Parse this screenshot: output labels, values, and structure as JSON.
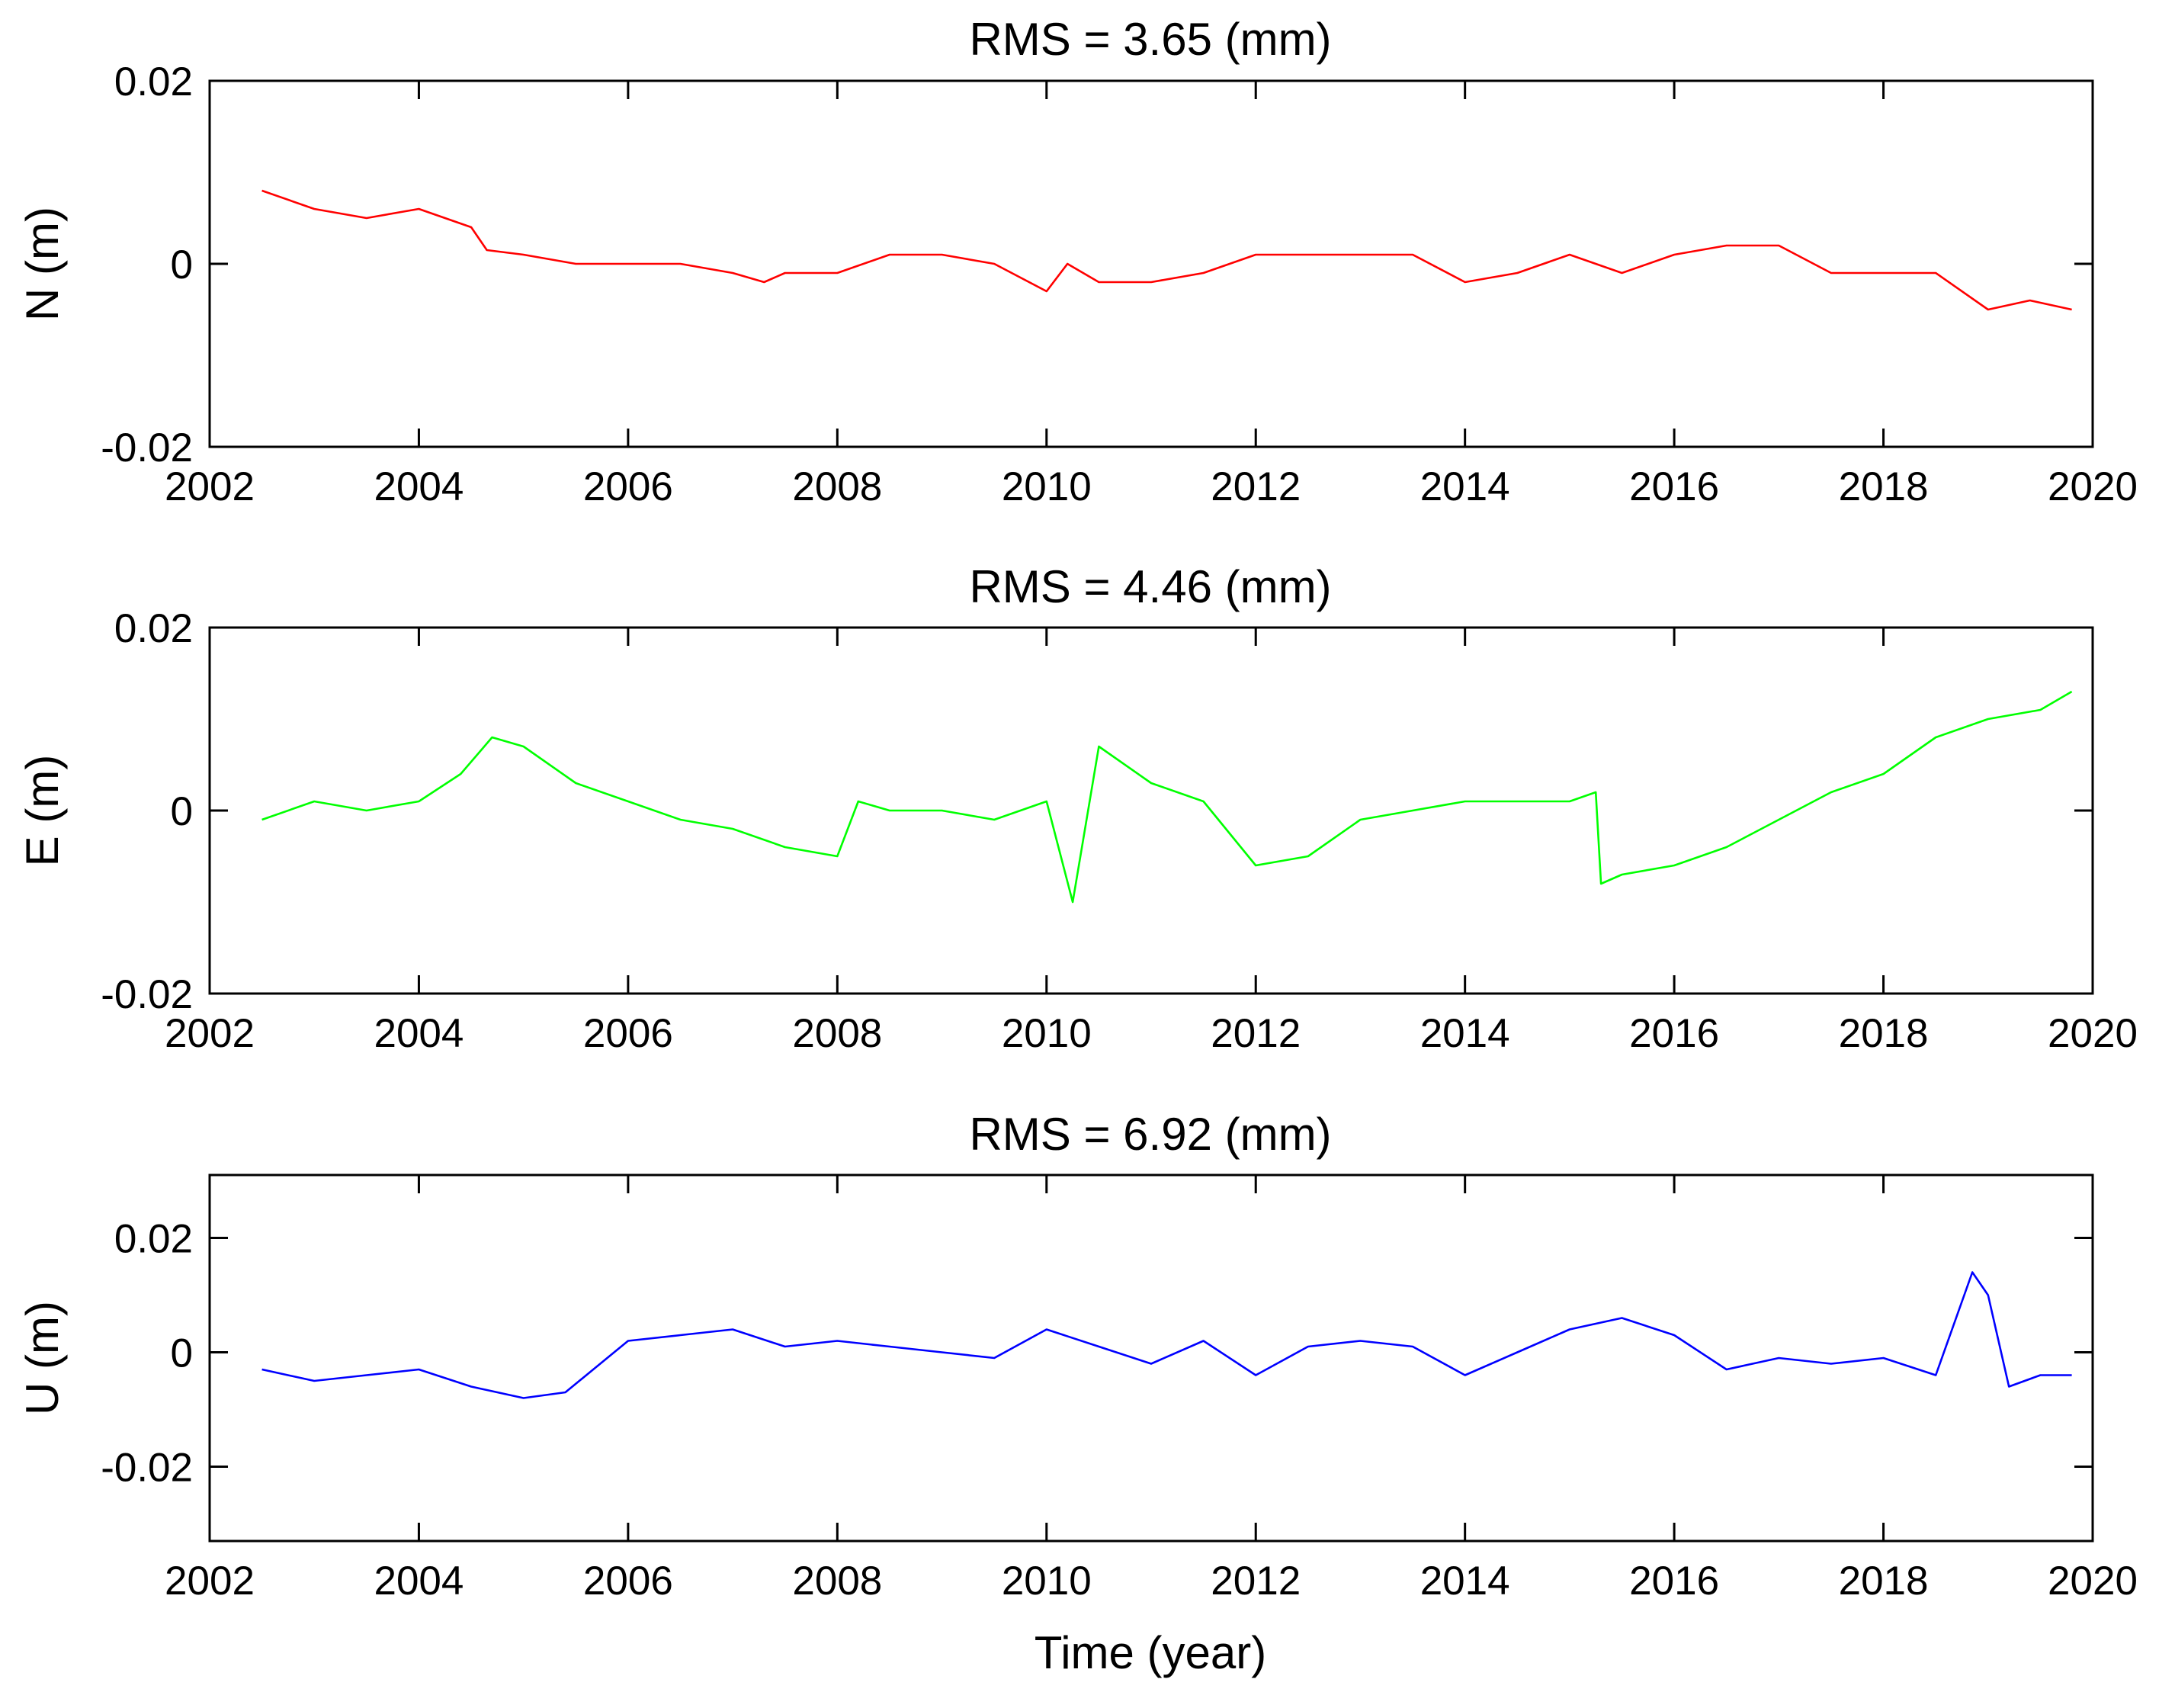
{
  "chart_data": [
    {
      "type": "line",
      "title": "RMS = 3.65 (mm)",
      "xlabel": "",
      "ylabel": "N (m)",
      "xlim": [
        2002,
        2020
      ],
      "ylim": [
        -0.02,
        0.02
      ],
      "xticks": [
        2002,
        2004,
        2006,
        2008,
        2010,
        2012,
        2014,
        2016,
        2018,
        2020
      ],
      "xtick_labels": [
        "2002",
        "2004",
        "2006",
        "2008",
        "2010",
        "2012",
        "2014",
        "2016",
        "2018",
        "2020"
      ],
      "yticks": [
        -0.02,
        0,
        0.02
      ],
      "ytick_labels": [
        "-0.02",
        "0",
        "0.02"
      ],
      "color": "#ff0000",
      "series": [
        {
          "name": "N",
          "x": [
            2002.5,
            2003.0,
            2003.5,
            2004.0,
            2004.5,
            2004.65,
            2005.0,
            2005.5,
            2006.0,
            2006.5,
            2007.0,
            2007.3,
            2007.5,
            2008.0,
            2008.5,
            2009.0,
            2009.5,
            2010.0,
            2010.2,
            2010.5,
            2011.0,
            2011.5,
            2012.0,
            2012.5,
            2013.0,
            2013.5,
            2014.0,
            2014.5,
            2015.0,
            2015.5,
            2016.0,
            2016.5,
            2017.0,
            2017.5,
            2018.0,
            2018.5,
            2019.0,
            2019.4,
            2019.8
          ],
          "y": [
            0.008,
            0.006,
            0.005,
            0.006,
            0.004,
            0.0015,
            0.001,
            0.0,
            0.0,
            0.0,
            -0.001,
            -0.002,
            -0.001,
            -0.001,
            0.001,
            0.001,
            0.0,
            -0.003,
            0.0,
            -0.002,
            -0.002,
            -0.001,
            0.001,
            0.001,
            0.001,
            0.001,
            -0.002,
            -0.001,
            0.001,
            -0.001,
            0.001,
            0.002,
            0.002,
            -0.001,
            -0.001,
            -0.001,
            -0.005,
            -0.004,
            -0.005
          ]
        }
      ]
    },
    {
      "type": "line",
      "title": "RMS = 4.46 (mm)",
      "xlabel": "",
      "ylabel": "E (m)",
      "xlim": [
        2002,
        2020
      ],
      "ylim": [
        -0.02,
        0.02
      ],
      "xticks": [
        2002,
        2004,
        2006,
        2008,
        2010,
        2012,
        2014,
        2016,
        2018,
        2020
      ],
      "xtick_labels": [
        "2002",
        "2004",
        "2006",
        "2008",
        "2010",
        "2012",
        "2014",
        "2016",
        "2018",
        "2020"
      ],
      "yticks": [
        -0.02,
        0,
        0.02
      ],
      "ytick_labels": [
        "-0.02",
        "0",
        "0.02"
      ],
      "color": "#00ff00",
      "series": [
        {
          "name": "E",
          "x": [
            2002.5,
            2003.0,
            2003.5,
            2004.0,
            2004.4,
            2004.7,
            2005.0,
            2005.5,
            2006.0,
            2006.5,
            2007.0,
            2007.5,
            2008.0,
            2008.2,
            2008.5,
            2009.0,
            2009.5,
            2010.0,
            2010.25,
            2010.5,
            2011.0,
            2011.5,
            2012.0,
            2012.5,
            2013.0,
            2013.5,
            2014.0,
            2014.5,
            2015.0,
            2015.25,
            2015.3,
            2015.5,
            2016.0,
            2016.5,
            2017.0,
            2017.5,
            2018.0,
            2018.5,
            2019.0,
            2019.5,
            2019.8
          ],
          "y": [
            -0.001,
            0.001,
            0.0,
            0.001,
            0.004,
            0.008,
            0.007,
            0.003,
            0.001,
            -0.001,
            -0.002,
            -0.004,
            -0.005,
            0.001,
            0.0,
            0.0,
            -0.001,
            0.001,
            -0.01,
            0.007,
            0.003,
            0.001,
            -0.006,
            -0.005,
            -0.001,
            0.0,
            0.001,
            0.001,
            0.001,
            0.002,
            -0.008,
            -0.007,
            -0.006,
            -0.004,
            -0.001,
            0.002,
            0.004,
            0.008,
            0.01,
            0.011,
            0.013
          ]
        }
      ]
    },
    {
      "type": "line",
      "title": "RMS = 6.92 (mm)",
      "xlabel": "Time (year)",
      "ylabel": "U (m)",
      "xlim": [
        2002,
        2020
      ],
      "ylim": [
        -0.033,
        0.031
      ],
      "xticks": [
        2002,
        2004,
        2006,
        2008,
        2010,
        2012,
        2014,
        2016,
        2018,
        2020
      ],
      "xtick_labels": [
        "2002",
        "2004",
        "2006",
        "2008",
        "2010",
        "2012",
        "2014",
        "2016",
        "2018",
        "2020"
      ],
      "yticks": [
        -0.02,
        0,
        0.02
      ],
      "ytick_labels": [
        "-0.02",
        "0",
        "0.02"
      ],
      "color": "#0000ff",
      "series": [
        {
          "name": "U",
          "x": [
            2002.5,
            2003.0,
            2003.5,
            2004.0,
            2004.5,
            2005.0,
            2005.4,
            2006.0,
            2006.5,
            2007.0,
            2007.5,
            2008.0,
            2008.5,
            2009.0,
            2009.5,
            2010.0,
            2010.5,
            2011.0,
            2011.5,
            2012.0,
            2012.5,
            2013.0,
            2013.5,
            2014.0,
            2014.5,
            2015.0,
            2015.5,
            2016.0,
            2016.5,
            2017.0,
            2017.5,
            2018.0,
            2018.5,
            2018.85,
            2019.0,
            2019.2,
            2019.5,
            2019.8
          ],
          "y": [
            -0.003,
            -0.005,
            -0.004,
            -0.003,
            -0.006,
            -0.008,
            -0.007,
            0.002,
            0.003,
            0.004,
            0.001,
            0.002,
            0.001,
            0.0,
            -0.001,
            0.004,
            0.001,
            -0.002,
            0.002,
            -0.004,
            0.001,
            0.002,
            0.001,
            -0.004,
            0.0,
            0.004,
            0.006,
            0.003,
            -0.003,
            -0.001,
            -0.002,
            -0.001,
            -0.004,
            0.014,
            0.01,
            -0.006,
            -0.004,
            -0.004
          ]
        }
      ]
    }
  ]
}
